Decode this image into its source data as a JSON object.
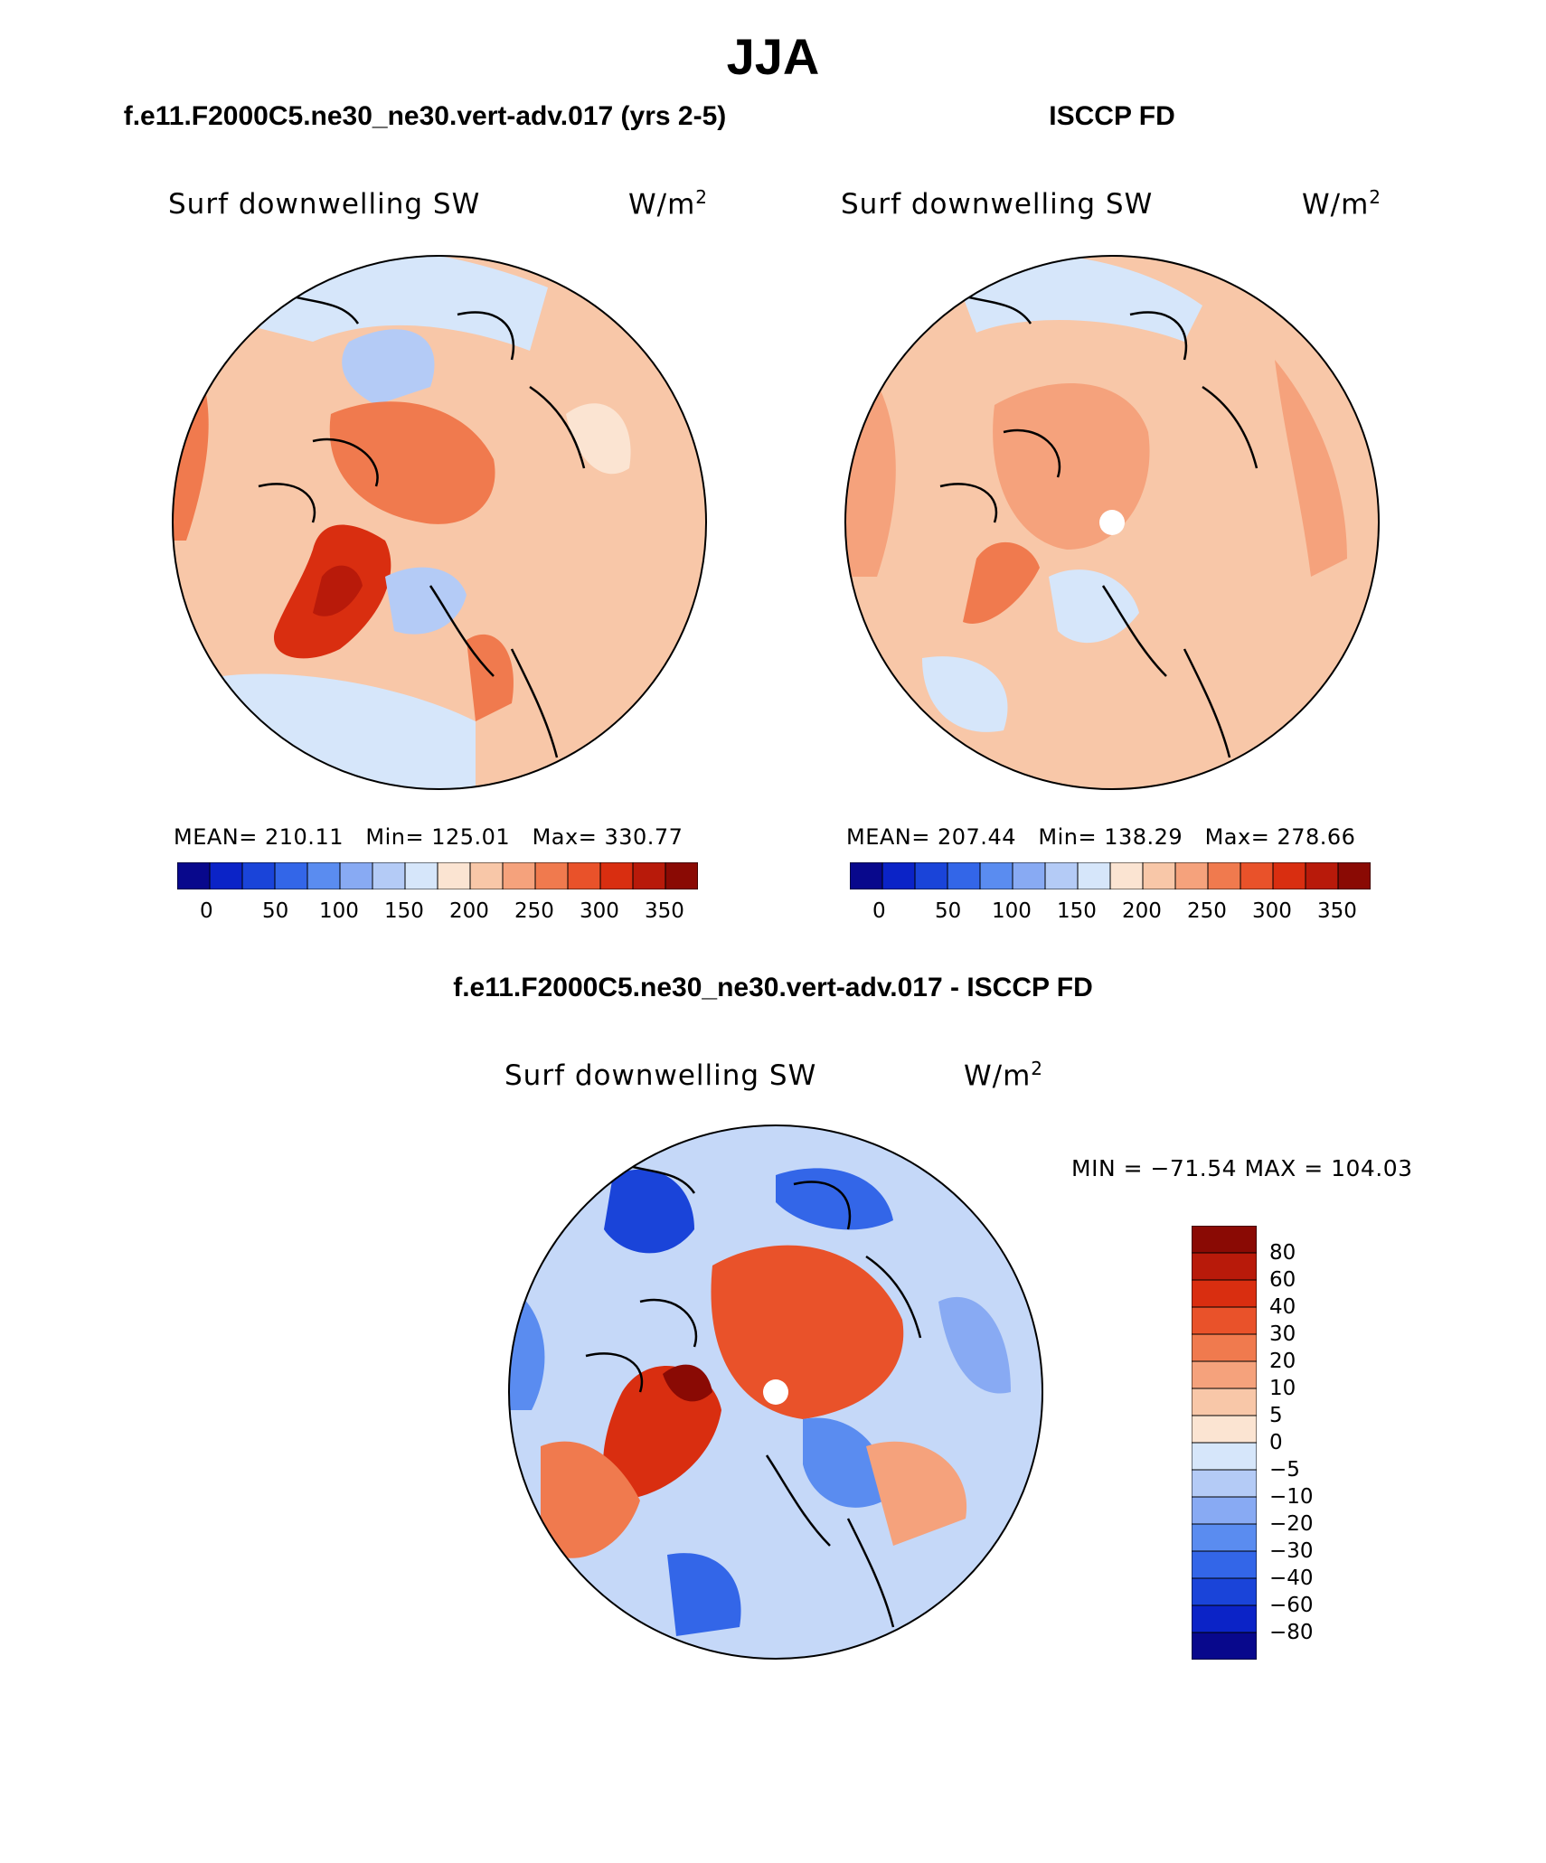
{
  "figure": {
    "title": "JJA"
  },
  "panels": {
    "model": {
      "title": "f.e11.F2000C5.ne30_ne30.vert-adv.017 (yrs 2-5)",
      "variable": "Surf downwelling SW",
      "units_base": "W/m",
      "units_exp": "2",
      "mean_label": "MEAN=",
      "mean_value": "210.11",
      "min_label": "Min=",
      "min_value": "125.01",
      "max_label": "Max=",
      "max_value": "330.77"
    },
    "obs": {
      "title": "ISCCP FD",
      "variable": "Surf downwelling SW",
      "units_base": "W/m",
      "units_exp": "2",
      "mean_label": "MEAN=",
      "mean_value": "207.44",
      "min_label": "Min=",
      "min_value": "138.29",
      "max_label": "Max=",
      "max_value": "278.66"
    },
    "diff": {
      "title": "f.e11.F2000C5.ne30_ne30.vert-adv.017 - ISCCP FD",
      "variable": "Surf downwelling SW",
      "units_base": "W/m",
      "units_exp": "2",
      "minmax": "MIN = −71.54 MAX = 104.03"
    }
  },
  "colorbars": {
    "abs_ticks": [
      "0",
      "50",
      "100",
      "150",
      "200",
      "250",
      "300",
      "350"
    ],
    "abs_colors": [
      "#08088c",
      "#0b23c7",
      "#1a44d9",
      "#3366e8",
      "#5a8cf0",
      "#88aaf3",
      "#b4cbf6",
      "#d6e6fa",
      "#fbe4d2",
      "#f8c7a8",
      "#f5a27c",
      "#f07a4e",
      "#e9522a",
      "#d92e10",
      "#b81a0a",
      "#8a0a04"
    ],
    "diff_levels": [
      "80",
      "60",
      "40",
      "30",
      "20",
      "10",
      "5",
      "0",
      "−5",
      "−10",
      "−20",
      "−30",
      "−40",
      "−60",
      "−80"
    ],
    "diff_colors": [
      "#8a0a04",
      "#b81a0a",
      "#d92e10",
      "#e9522a",
      "#f07a4e",
      "#f5a27c",
      "#f8c7a8",
      "#fbe4d2",
      "#d6e6fa",
      "#b4cbf6",
      "#88aaf3",
      "#5a8cf0",
      "#3366e8",
      "#1a44d9",
      "#0b23c7",
      "#08088c"
    ]
  }
}
